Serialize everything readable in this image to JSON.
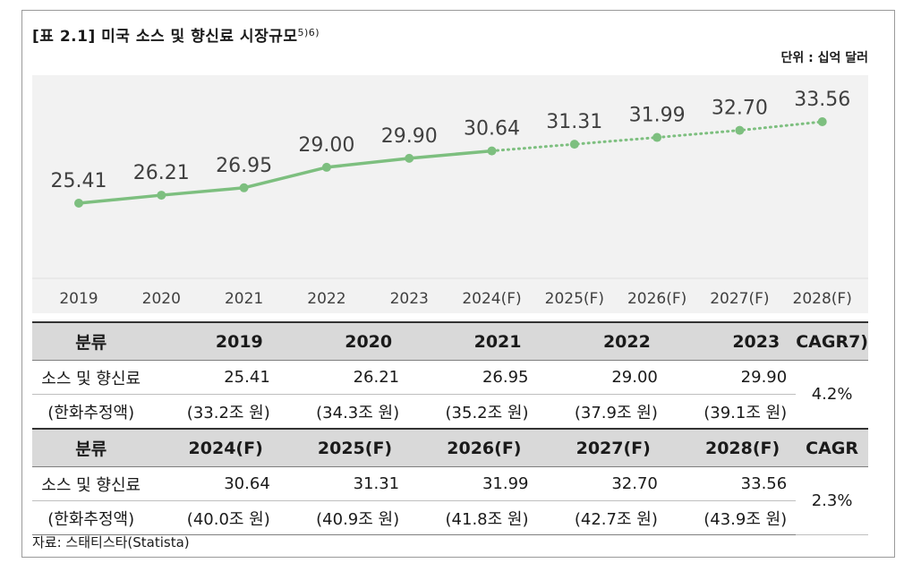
{
  "title": "[표 2.1] 미국 소스 및 향신료 시장규모",
  "title_note": "5)6)",
  "unit": "단위 : 십억 달러",
  "chart_data": {
    "type": "line",
    "categories": [
      "2019",
      "2020",
      "2021",
      "2022",
      "2023",
      "2024(F)",
      "2025(F)",
      "2026(F)",
      "2027(F)",
      "2028(F)"
    ],
    "values": [
      25.41,
      26.21,
      26.95,
      29.0,
      29.9,
      30.64,
      31.31,
      31.99,
      32.7,
      33.56
    ],
    "value_labels": [
      "25.41",
      "26.21",
      "26.95",
      "29.00",
      "29.90",
      "30.64",
      "31.31",
      "31.99",
      "32.70",
      "33.56"
    ],
    "solid_until_index": 5,
    "ylim": [
      18,
      37
    ],
    "color": "#7dbf7f",
    "title": "",
    "xlabel": "",
    "ylabel": ""
  },
  "table": {
    "blocks": [
      {
        "header": [
          "분류",
          "2019",
          "2020",
          "2021",
          "2022",
          "2023",
          "CAGR7)"
        ],
        "row1_label": "소스 및 향신료",
        "row1": [
          "25.41",
          "26.21",
          "26.95",
          "29.00",
          "29.90"
        ],
        "row2_label": "(한화추정액)",
        "row2": [
          "(33.2조 원)",
          "(34.3조 원)",
          "(35.2조 원)",
          "(37.9조 원)",
          "(39.1조 원)"
        ],
        "cagr": "4.2%"
      },
      {
        "header": [
          "분류",
          "2024(F)",
          "2025(F)",
          "2026(F)",
          "2027(F)",
          "2028(F)",
          "CAGR"
        ],
        "row1_label": "소스 및 향신료",
        "row1": [
          "30.64",
          "31.31",
          "31.99",
          "32.70",
          "33.56"
        ],
        "row2_label": "(한화추정액)",
        "row2": [
          "(40.0조 원)",
          "(40.9조 원)",
          "(41.8조 원)",
          "(42.7조 원)",
          "(43.9조 원)"
        ],
        "cagr": "2.3%"
      }
    ]
  },
  "source": "자료: 스태티스타(Statista)"
}
